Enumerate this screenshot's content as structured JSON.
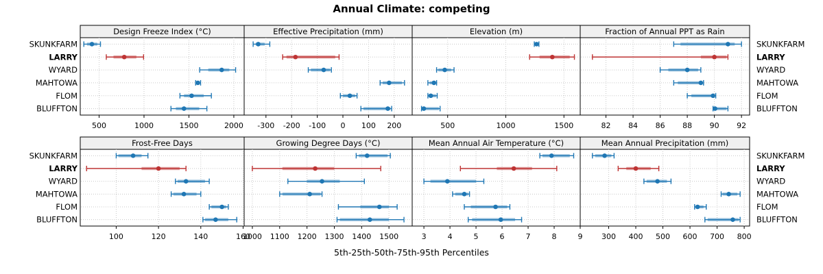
{
  "title": "Annual Climate: competing",
  "caption": "5th-25th-50th-75th-95th Percentiles",
  "sites": [
    "SKUNKFARM",
    "LARRY",
    "WYARD",
    "MAHTOWA",
    "FLOM",
    "BLUFFTON"
  ],
  "highlight_site": "LARRY",
  "colors": {
    "normal": "#1F77B4",
    "highlight": "#BE3333",
    "grid": "#C8C8C8",
    "strip_bg": "#F0F0F0",
    "panel_border": "#000000",
    "text": "#000000"
  },
  "chart_data": {
    "type": "trellis-dotplot-percentiles",
    "percentiles": [
      5,
      25,
      50,
      75,
      95
    ],
    "layout": {
      "rows": 2,
      "cols": 4,
      "grid": "dotted",
      "y_labels_both_sides": true
    },
    "panels": [
      {
        "title": "Design Freeze Index (°C)",
        "xlim": [
          290,
          2115
        ],
        "ticks": [
          500,
          1000,
          1500,
          2000
        ],
        "series": [
          {
            "site": "SKUNKFARM",
            "p": [
              330,
              365,
              420,
              480,
              515
            ]
          },
          {
            "site": "LARRY",
            "p": [
              580,
              660,
              780,
              915,
              995
            ]
          },
          {
            "site": "WYARD",
            "p": [
              1620,
              1715,
              1865,
              1950,
              2020
            ]
          },
          {
            "site": "MAHTOWA",
            "p": [
              1575,
              1585,
              1600,
              1620,
              1630
            ]
          },
          {
            "site": "FLOM",
            "p": [
              1400,
              1445,
              1530,
              1665,
              1750
            ]
          },
          {
            "site": "BLUFFTON",
            "p": [
              1300,
              1355,
              1445,
              1615,
              1700
            ]
          }
        ]
      },
      {
        "title": "Effective Precipitation (mm)",
        "xlim": [
          -385,
          270
        ],
        "ticks": [
          -300,
          -200,
          -100,
          0,
          100,
          200
        ],
        "series": [
          {
            "site": "SKUNKFARM",
            "p": [
              -350,
              -340,
              -330,
              -305,
              -285
            ]
          },
          {
            "site": "LARRY",
            "p": [
              -235,
              -220,
              -185,
              -30,
              -15
            ]
          },
          {
            "site": "WYARD",
            "p": [
              -135,
              -125,
              -75,
              -50,
              -45
            ]
          },
          {
            "site": "MAHTOWA",
            "p": [
              145,
              155,
              180,
              230,
              240
            ]
          },
          {
            "site": "FLOM",
            "p": [
              -10,
              0,
              27,
              48,
              55
            ]
          },
          {
            "site": "BLUFFTON",
            "p": [
              70,
              80,
              175,
              185,
              190
            ]
          }
        ]
      },
      {
        "title": "Elevation (m)",
        "xlim": [
          195,
          1640
        ],
        "ticks": [
          500,
          1000,
          1500
        ],
        "series": [
          {
            "site": "SKUNKFARM",
            "p": [
              1245,
              1255,
              1265,
              1275,
              1285
            ]
          },
          {
            "site": "LARRY",
            "p": [
              1205,
              1290,
              1400,
              1550,
              1590
            ]
          },
          {
            "site": "WYARD",
            "p": [
              405,
              420,
              475,
              530,
              555
            ]
          },
          {
            "site": "MAHTOWA",
            "p": [
              330,
              345,
              382,
              400,
              405
            ]
          },
          {
            "site": "FLOM",
            "p": [
              330,
              335,
              355,
              400,
              410
            ]
          },
          {
            "site": "BLUFFTON",
            "p": [
              275,
              285,
              295,
              425,
              435
            ]
          }
        ]
      },
      {
        "title": "Fraction of Annual PPT as Rain",
        "xlim": [
          80.1,
          92.6
        ],
        "ticks": [
          82,
          84,
          86,
          88,
          90,
          92
        ],
        "series": [
          {
            "site": "SKUNKFARM",
            "p": [
              87,
              87.5,
              91,
              91.5,
              92
            ]
          },
          {
            "site": "LARRY",
            "p": [
              81,
              89,
              90,
              90.9,
              91
            ]
          },
          {
            "site": "WYARD",
            "p": [
              86,
              86.6,
              88,
              88.8,
              89
            ]
          },
          {
            "site": "MAHTOWA",
            "p": [
              87,
              87.3,
              89,
              89.1,
              89.2
            ]
          },
          {
            "site": "FLOM",
            "p": [
              88,
              88.3,
              89.9,
              90,
              90.1
            ]
          },
          {
            "site": "BLUFFTON",
            "p": [
              89.9,
              90,
              90.05,
              90.9,
              91
            ]
          }
        ]
      },
      {
        "title": "Frost-Free Days",
        "xlim": [
          83,
          160.5
        ],
        "ticks": [
          100,
          120,
          140,
          160
        ],
        "series": [
          {
            "site": "SKUNKFARM",
            "p": [
              100,
              101,
              108,
              112,
              115
            ]
          },
          {
            "site": "LARRY",
            "p": [
              86,
              112,
              120,
              130,
              133
            ]
          },
          {
            "site": "WYARD",
            "p": [
              128,
              129,
              133,
              142,
              144
            ]
          },
          {
            "site": "MAHTOWA",
            "p": [
              126,
              127,
              132,
              138,
              140
            ]
          },
          {
            "site": "FLOM",
            "p": [
              144,
              145,
              150,
              152,
              153
            ]
          },
          {
            "site": "BLUFFTON",
            "p": [
              141,
              142,
              147,
              153,
              157
            ]
          }
        ]
      },
      {
        "title": "Growing Degree Days (°C)",
        "xlim": [
          970,
          1585
        ],
        "ticks": [
          1000,
          1100,
          1200,
          1300,
          1400,
          1500
        ],
        "series": [
          {
            "site": "SKUNKFARM",
            "p": [
              1380,
              1390,
              1420,
              1495,
              1505
            ]
          },
          {
            "site": "LARRY",
            "p": [
              1000,
              1110,
              1230,
              1300,
              1470
            ]
          },
          {
            "site": "WYARD",
            "p": [
              1130,
              1200,
              1255,
              1320,
              1410
            ]
          },
          {
            "site": "MAHTOWA",
            "p": [
              1100,
              1110,
              1210,
              1250,
              1255
            ]
          },
          {
            "site": "FLOM",
            "p": [
              1315,
              1395,
              1465,
              1500,
              1530
            ]
          },
          {
            "site": "BLUFFTON",
            "p": [
              1310,
              1320,
              1430,
              1500,
              1555
            ]
          }
        ]
      },
      {
        "title": "Mean Annual Air Temperature (°C)",
        "xlim": [
          2.55,
          9.0
        ],
        "ticks": [
          3,
          4,
          5,
          6,
          7,
          8,
          9
        ],
        "series": [
          {
            "site": "SKUNKFARM",
            "p": [
              7.45,
              7.55,
              7.9,
              8.6,
              8.75
            ]
          },
          {
            "site": "LARRY",
            "p": [
              4.4,
              5.8,
              6.45,
              7.15,
              8.1
            ]
          },
          {
            "site": "WYARD",
            "p": [
              3.0,
              3.25,
              3.9,
              5.0,
              5.3
            ]
          },
          {
            "site": "MAHTOWA",
            "p": [
              4.1,
              4.2,
              4.55,
              4.7,
              4.75
            ]
          },
          {
            "site": "FLOM",
            "p": [
              4.55,
              4.8,
              5.75,
              6.2,
              6.3
            ]
          },
          {
            "site": "BLUFFTON",
            "p": [
              4.7,
              4.85,
              5.95,
              6.5,
              6.75
            ]
          }
        ]
      },
      {
        "title": "Mean Annual Precipitation (mm)",
        "xlim": [
          195,
          820
        ],
        "ticks": [
          300,
          400,
          500,
          600,
          700,
          800
        ],
        "series": [
          {
            "site": "SKUNKFARM",
            "p": [
              240,
              250,
              285,
              310,
              320
            ]
          },
          {
            "site": "LARRY",
            "p": [
              335,
              365,
              400,
              455,
              485
            ]
          },
          {
            "site": "WYARD",
            "p": [
              430,
              440,
              480,
              515,
              530
            ]
          },
          {
            "site": "MAHTOWA",
            "p": [
              715,
              720,
              743,
              775,
              785
            ]
          },
          {
            "site": "FLOM",
            "p": [
              617,
              622,
              628,
              650,
              660
            ]
          },
          {
            "site": "BLUFFTON",
            "p": [
              655,
              665,
              758,
              780,
              785
            ]
          }
        ]
      }
    ]
  }
}
